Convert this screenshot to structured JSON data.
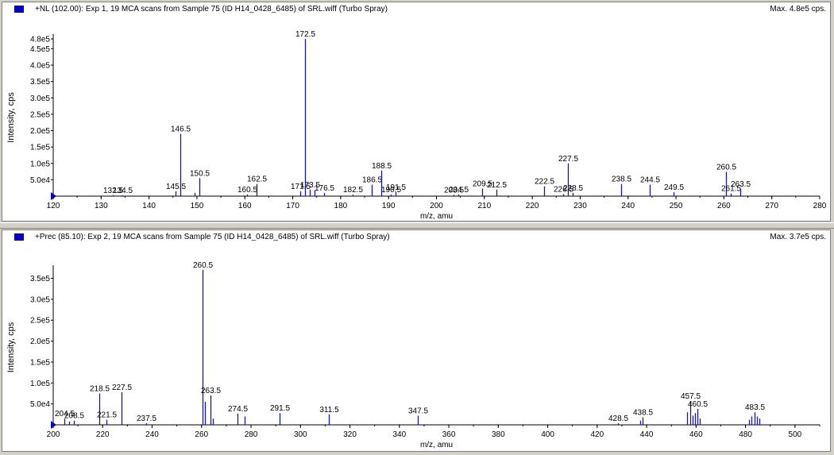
{
  "panes": [
    {
      "title": "+NL (102.00): Exp 1, 19 MCA scans from Sample 75 (ID H14_0428_6485) of SRL.wiff (Turbo Spray)",
      "max_label": "Max. 4.8e5 cps."
    },
    {
      "title": "+Prec (85.10): Exp 2, 19 MCA scans from Sample 75 (ID H14_0428_6485) of SRL.wiff (Turbo Spray)",
      "max_label": "Max. 3.7e5 cps."
    }
  ],
  "colors": {
    "series": "#1a1aa0",
    "axis": "#000000",
    "icon": "#0000cc"
  },
  "chart_data": [
    {
      "type": "bar",
      "xlabel": "m/z, amu",
      "ylabel": "Intensity, cps",
      "xlim": [
        120,
        280
      ],
      "ylim": [
        0,
        480000
      ],
      "xticks": [
        120,
        130,
        140,
        150,
        160,
        170,
        180,
        190,
        200,
        210,
        220,
        230,
        240,
        250,
        260,
        270,
        280
      ],
      "yticks": [
        {
          "v": 50000,
          "label": "5.0e4"
        },
        {
          "v": 100000,
          "label": "1.0e5"
        },
        {
          "v": 150000,
          "label": "1.5e5"
        },
        {
          "v": 200000,
          "label": "2.0e5"
        },
        {
          "v": 250000,
          "label": "2.5e5"
        },
        {
          "v": 300000,
          "label": "3.0e5"
        },
        {
          "v": 350000,
          "label": "3.5e5"
        },
        {
          "v": 400000,
          "label": "4.0e5"
        },
        {
          "v": 450000,
          "label": "4.5e5"
        },
        {
          "v": 480000,
          "label": "4.8e5"
        }
      ],
      "peaks": [
        {
          "x": 132.5,
          "y": 3000,
          "label": "132.5"
        },
        {
          "x": 134.5,
          "y": 3000,
          "label": "134.5"
        },
        {
          "x": 145.5,
          "y": 15000,
          "label": "145.5"
        },
        {
          "x": 146.5,
          "y": 190000,
          "label": "146.5"
        },
        {
          "x": 149.5,
          "y": 10000
        },
        {
          "x": 150.5,
          "y": 55000,
          "label": "150.5"
        },
        {
          "x": 160.5,
          "y": 5000,
          "label": "160.5"
        },
        {
          "x": 162.5,
          "y": 37000,
          "label": "162.5"
        },
        {
          "x": 171.5,
          "y": 15000,
          "label": "171.5"
        },
        {
          "x": 172.5,
          "y": 480000,
          "label": "172.5"
        },
        {
          "x": 173.5,
          "y": 20000,
          "label": "173.5"
        },
        {
          "x": 174.5,
          "y": 18000
        },
        {
          "x": 176.5,
          "y": 10000,
          "label": "176.5"
        },
        {
          "x": 182.5,
          "y": 5000,
          "label": "182.5"
        },
        {
          "x": 186.5,
          "y": 35000,
          "label": "186.5"
        },
        {
          "x": 188.5,
          "y": 78000,
          "label": "188.5"
        },
        {
          "x": 190.5,
          "y": 5000,
          "label": "190.5"
        },
        {
          "x": 191.5,
          "y": 12000,
          "label": "191.5"
        },
        {
          "x": 203.5,
          "y": 4000,
          "label": "203.5"
        },
        {
          "x": 204.5,
          "y": 5000,
          "label": "204.5"
        },
        {
          "x": 209.5,
          "y": 23000,
          "label": "209.5"
        },
        {
          "x": 212.5,
          "y": 20000,
          "label": "212.5"
        },
        {
          "x": 222.5,
          "y": 30000,
          "label": "222.5"
        },
        {
          "x": 226.5,
          "y": 6000,
          "label": "226.5"
        },
        {
          "x": 227.5,
          "y": 100000,
          "label": "227.5"
        },
        {
          "x": 228.5,
          "y": 10000,
          "label": "228.5"
        },
        {
          "x": 238.5,
          "y": 37000,
          "label": "238.5"
        },
        {
          "x": 244.5,
          "y": 35000,
          "label": "244.5"
        },
        {
          "x": 249.5,
          "y": 12000,
          "label": "249.5"
        },
        {
          "x": 260.5,
          "y": 74000,
          "label": "260.5"
        },
        {
          "x": 261.5,
          "y": 8000,
          "label": "261.5"
        },
        {
          "x": 263.5,
          "y": 22000,
          "label": "263.5"
        }
      ]
    },
    {
      "type": "bar",
      "xlabel": "m/z, amu",
      "ylabel": "Intensity, cps",
      "xlim": [
        200,
        510
      ],
      "ylim": [
        0,
        370000
      ],
      "xticks": [
        200,
        220,
        240,
        260,
        280,
        300,
        320,
        340,
        360,
        380,
        400,
        420,
        440,
        460,
        480,
        500
      ],
      "yticks": [
        {
          "v": 50000,
          "label": "5.0e4"
        },
        {
          "v": 100000,
          "label": "1.0e5"
        },
        {
          "v": 150000,
          "label": "1.5e5"
        },
        {
          "v": 200000,
          "label": "2.0e5"
        },
        {
          "v": 250000,
          "label": "2.5e5"
        },
        {
          "v": 300000,
          "label": "3.0e5"
        },
        {
          "v": 350000,
          "label": "3.5e5"
        }
      ],
      "peaks": [
        {
          "x": 204.5,
          "y": 15000,
          "label": "204.5"
        },
        {
          "x": 206.5,
          "y": 8000
        },
        {
          "x": 208.5,
          "y": 10000,
          "label": "208.5"
        },
        {
          "x": 218.5,
          "y": 75000,
          "label": "218.5"
        },
        {
          "x": 221.5,
          "y": 12000,
          "label": "221.5"
        },
        {
          "x": 227.5,
          "y": 78000,
          "label": "227.5"
        },
        {
          "x": 237.5,
          "y": 4000,
          "label": "237.5"
        },
        {
          "x": 260.5,
          "y": 370000,
          "label": "260.5"
        },
        {
          "x": 261.5,
          "y": 55000
        },
        {
          "x": 263.5,
          "y": 70000,
          "label": "263.5"
        },
        {
          "x": 264.5,
          "y": 15000
        },
        {
          "x": 274.5,
          "y": 27000,
          "label": "274.5"
        },
        {
          "x": 277.5,
          "y": 20000
        },
        {
          "x": 291.5,
          "y": 28000,
          "label": "291.5"
        },
        {
          "x": 311.5,
          "y": 25000,
          "label": "311.5"
        },
        {
          "x": 347.5,
          "y": 22000,
          "label": "347.5"
        },
        {
          "x": 428.5,
          "y": 4000,
          "label": "428.5"
        },
        {
          "x": 437.5,
          "y": 10000
        },
        {
          "x": 438.5,
          "y": 18000,
          "label": "438.5"
        },
        {
          "x": 456.5,
          "y": 30000
        },
        {
          "x": 457.5,
          "y": 57000,
          "label": "457.5"
        },
        {
          "x": 458.5,
          "y": 22000
        },
        {
          "x": 459.5,
          "y": 28000
        },
        {
          "x": 460.5,
          "y": 38000,
          "label": "460.5"
        },
        {
          "x": 461.5,
          "y": 15000
        },
        {
          "x": 481.5,
          "y": 12000
        },
        {
          "x": 482.5,
          "y": 20000
        },
        {
          "x": 483.5,
          "y": 30000,
          "label": "483.5"
        },
        {
          "x": 484.5,
          "y": 20000
        },
        {
          "x": 485.5,
          "y": 15000
        }
      ]
    }
  ]
}
